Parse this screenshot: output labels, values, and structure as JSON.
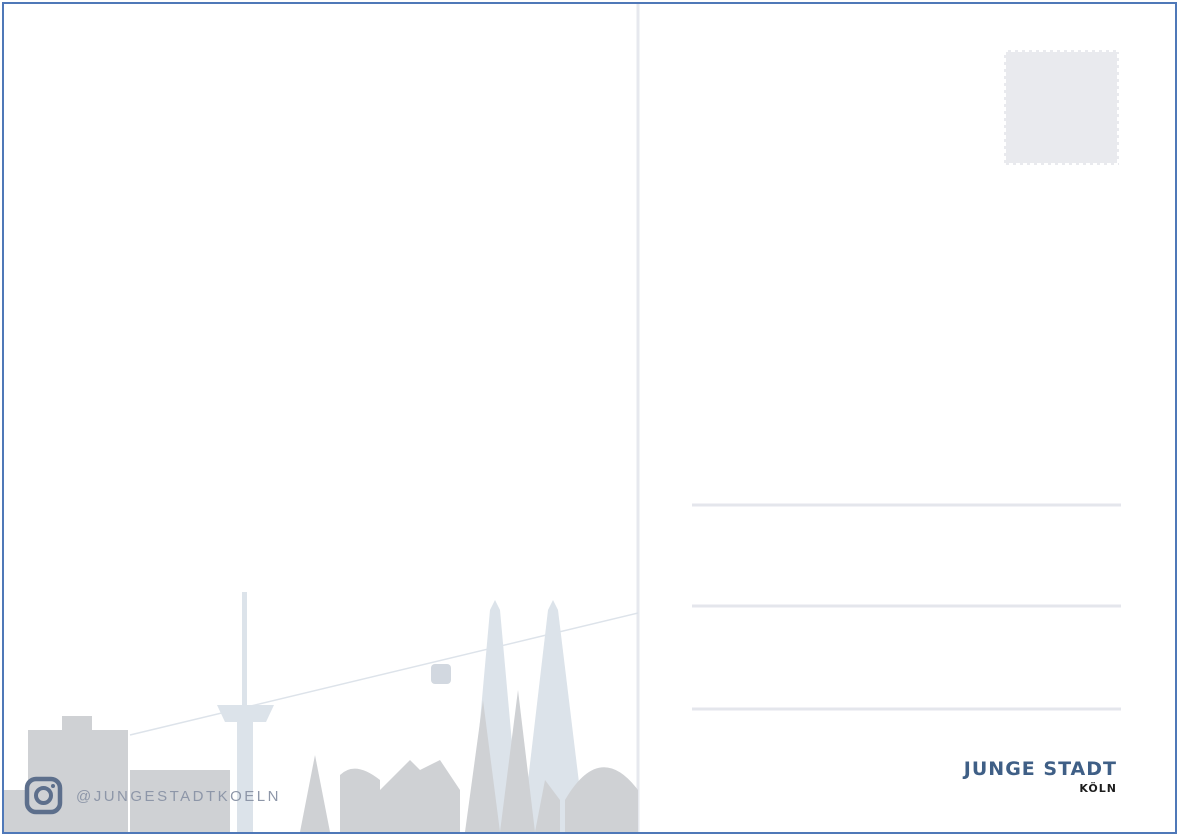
{
  "instagram": {
    "handle": "@JUNGESTADTKOELN"
  },
  "logo": {
    "name": "JUNGE STADT",
    "city": "KÖLN"
  }
}
